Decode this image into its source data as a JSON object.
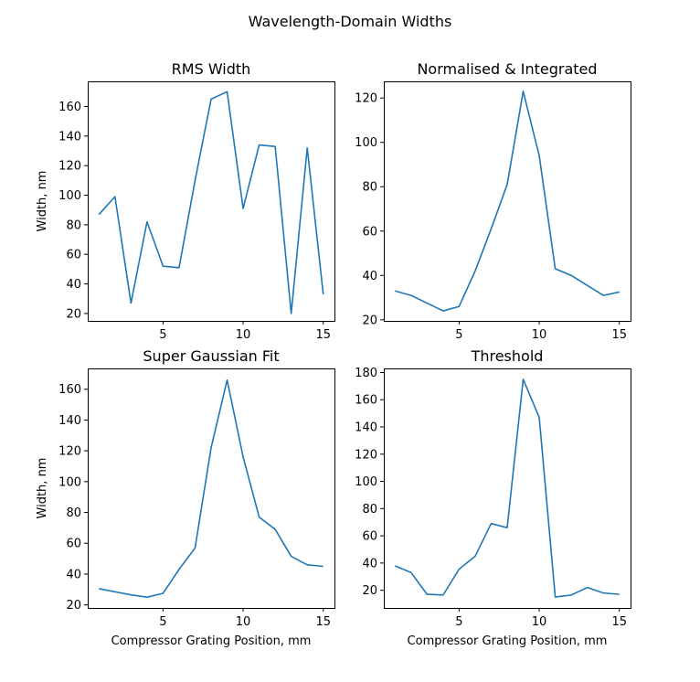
{
  "figure": {
    "title": "Wavelength-Domain Widths"
  },
  "colors": {
    "series": "#1f77b4",
    "axes": "#000000",
    "background": "#ffffff"
  },
  "chart_data": [
    {
      "type": "line",
      "title": "RMS Width",
      "xlabel": "",
      "ylabel": "Width, nm",
      "x": [
        1,
        2,
        3,
        4,
        5,
        6,
        7,
        8,
        9,
        10,
        11,
        12,
        13,
        14,
        15
      ],
      "series": [
        {
          "values": [
            87,
            99,
            27,
            82,
            52,
            51,
            110,
            165,
            170,
            91,
            134,
            133,
            20,
            132,
            33
          ]
        }
      ],
      "xlim": [
        0.3,
        15.7
      ],
      "ylim": [
        15,
        177
      ],
      "xticks": [
        5,
        10,
        15
      ],
      "yticks": [
        20,
        40,
        60,
        80,
        100,
        120,
        140,
        160
      ],
      "grid": false
    },
    {
      "type": "line",
      "title": "Normalised & Integrated",
      "xlabel": "",
      "ylabel": "",
      "x": [
        1,
        2,
        3,
        4,
        5,
        6,
        7,
        8,
        9,
        10,
        11,
        12,
        13,
        14,
        15
      ],
      "series": [
        {
          "values": [
            33,
            31,
            27.5,
            24,
            26,
            42,
            61,
            81,
            123,
            94,
            43,
            40,
            35.5,
            31,
            32.5
          ]
        }
      ],
      "xlim": [
        0.3,
        15.7
      ],
      "ylim": [
        19.5,
        127.5
      ],
      "xticks": [
        5,
        10,
        15
      ],
      "yticks": [
        20,
        40,
        60,
        80,
        100,
        120
      ],
      "grid": false
    },
    {
      "type": "line",
      "title": "Super Gaussian Fit",
      "xlabel": "Compressor Grating Position, mm",
      "ylabel": "Width, nm",
      "x": [
        1,
        2,
        3,
        4,
        5,
        6,
        7,
        8,
        9,
        10,
        11,
        12,
        13,
        14,
        15
      ],
      "series": [
        {
          "values": [
            30.5,
            28.5,
            26.5,
            25,
            27.5,
            43,
            57,
            122,
            166,
            116,
            77,
            69,
            51.5,
            46,
            45
          ]
        }
      ],
      "xlim": [
        0.3,
        15.7
      ],
      "ylim": [
        18,
        173.5
      ],
      "xticks": [
        5,
        10,
        15
      ],
      "yticks": [
        20,
        40,
        60,
        80,
        100,
        120,
        140,
        160
      ],
      "grid": false
    },
    {
      "type": "line",
      "title": "Threshold",
      "xlabel": "Compressor Grating Position, mm",
      "ylabel": "",
      "x": [
        1,
        2,
        3,
        4,
        5,
        6,
        7,
        8,
        9,
        10,
        11,
        12,
        13,
        14,
        15
      ],
      "series": [
        {
          "values": [
            38,
            33,
            17,
            16.5,
            35.5,
            45,
            69,
            66,
            175,
            147,
            15,
            16.5,
            22,
            18,
            17
          ]
        }
      ],
      "xlim": [
        0.3,
        15.7
      ],
      "ylim": [
        7,
        183
      ],
      "xticks": [
        5,
        10,
        15
      ],
      "yticks": [
        20,
        40,
        60,
        80,
        100,
        120,
        140,
        160,
        180
      ],
      "grid": false
    }
  ]
}
